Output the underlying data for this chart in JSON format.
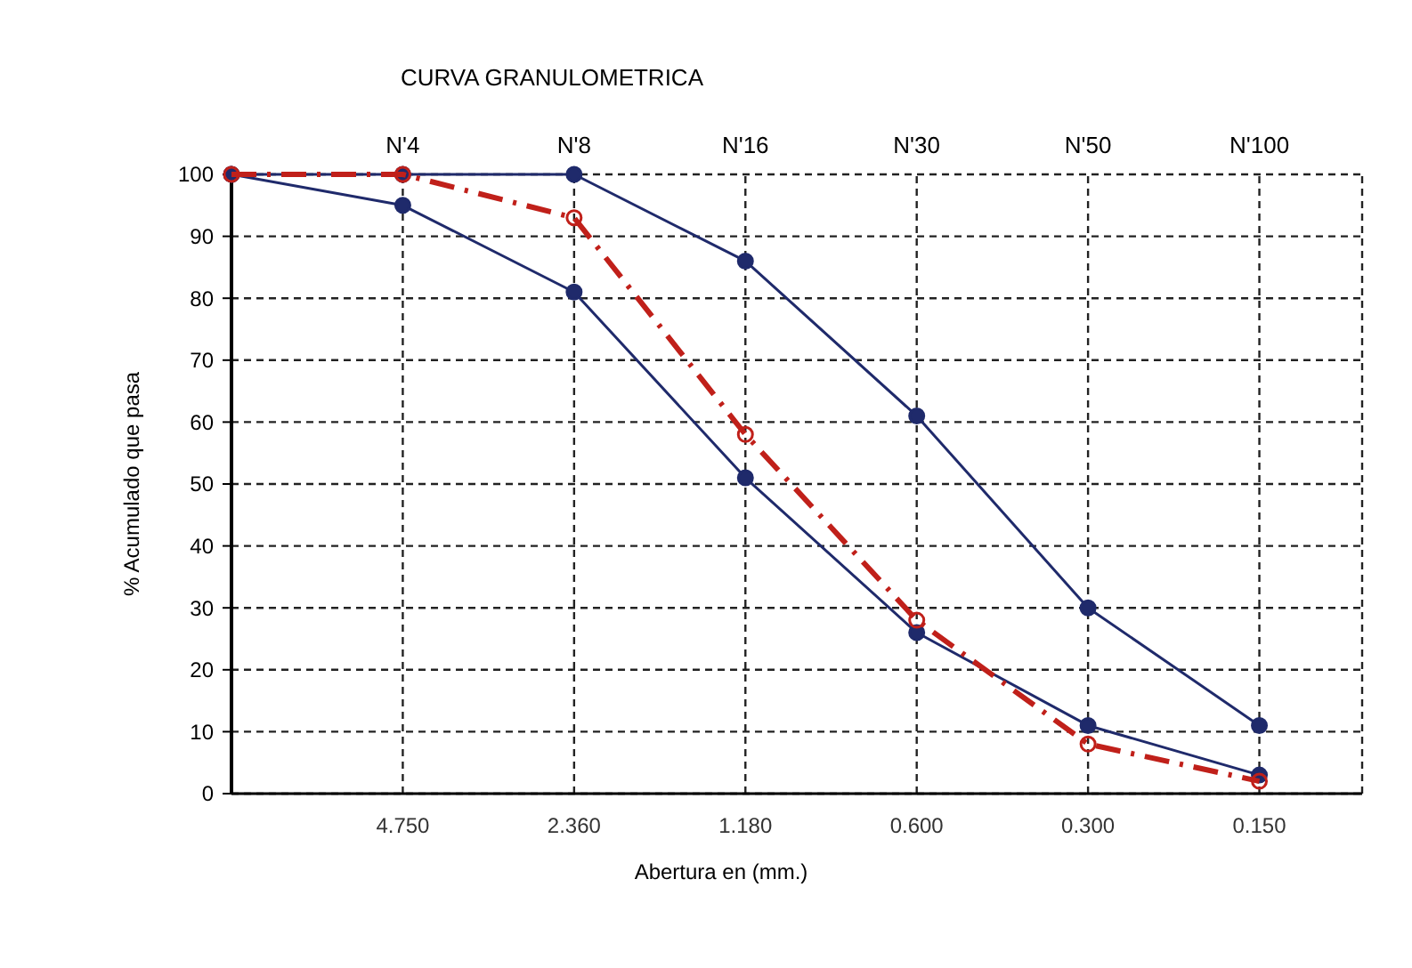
{
  "chart_data": {
    "type": "line",
    "title": "CURVA GRANULOMETRICA",
    "xlabel": "Abertura en (mm.)",
    "ylabel": "% Acumulado que pasa",
    "categories": [
      null,
      "4.750",
      "2.360",
      "1.180",
      "0.600",
      "0.300",
      "0.150"
    ],
    "series": [
      {
        "color": "#1f2a6b",
        "values": [
          100,
          100,
          100,
          86,
          61,
          30,
          11
        ]
      },
      {
        "color": "#1f2a6b",
        "values": [
          100,
          95,
          81,
          51,
          26,
          11,
          3
        ]
      },
      {
        "color": "#c0201a",
        "values": [
          100,
          100,
          93,
          58,
          28,
          8,
          2
        ],
        "line_style": "dashed"
      }
    ],
    "annotations": [
      "N'4",
      "N'8",
      "N'16",
      "N'30",
      "N'50",
      "N'100"
    ],
    "ylim": [
      0,
      100
    ],
    "yticks": [
      0,
      10,
      20,
      30,
      40,
      50,
      60,
      70,
      80,
      90,
      100
    ],
    "grid": true,
    "marker": "circle"
  }
}
